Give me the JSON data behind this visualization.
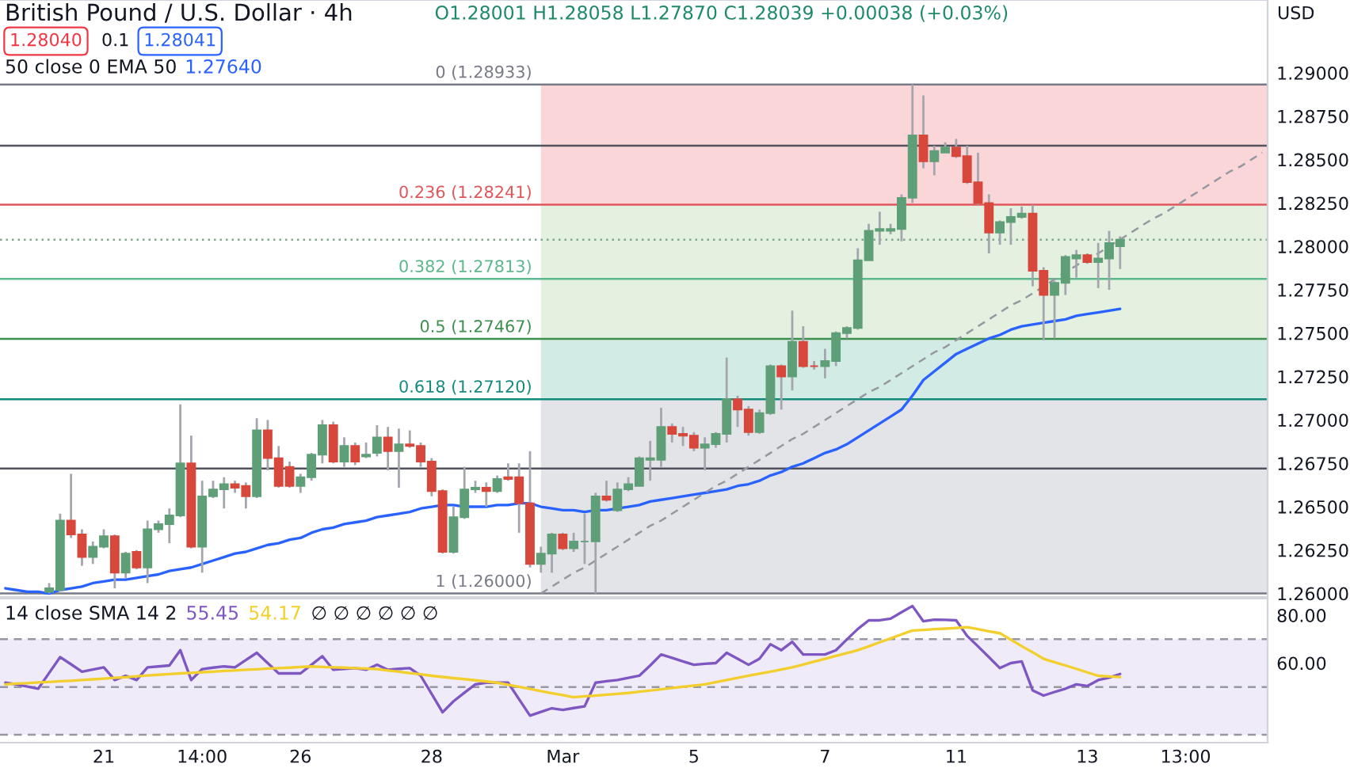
{
  "chart_data": [
    {
      "type": "candlestick",
      "title": "British Pound / U.S. Dollar · 4h",
      "ylabel": "USD",
      "annotations": [
        "O1.28001 H1.28058 L1.27870 C1.28039 +0.00038 (+0.03%)",
        "1.28040",
        "0.1",
        "1.28041",
        "50 close 0 EMA 50",
        "1.27640"
      ],
      "categories": [
        null,
        null,
        null,
        null,
        null,
        null,
        null,
        null,
        null,
        null,
        null,
        null,
        null,
        null,
        null,
        null,
        null,
        null,
        null,
        null,
        null,
        null,
        null,
        null,
        null,
        null,
        null,
        null,
        null,
        null,
        null,
        null,
        null,
        null,
        null,
        null,
        null,
        null,
        null,
        null,
        null,
        null,
        null,
        null,
        null,
        null,
        null,
        null,
        null,
        null,
        null,
        null,
        null,
        null,
        null,
        null,
        null,
        null,
        null,
        null,
        null,
        null,
        null,
        null,
        null,
        null,
        null,
        null,
        null,
        null,
        null,
        null,
        null,
        null,
        null,
        null,
        null,
        null,
        null,
        null,
        null,
        null,
        null,
        null,
        null,
        null,
        null,
        null,
        null,
        null,
        null,
        null,
        null,
        null,
        null,
        null,
        null,
        null,
        null,
        null,
        null,
        null,
        null,
        null,
        null,
        null,
        null,
        null,
        null,
        null,
        null,
        null,
        null,
        null,
        null,
        null
      ],
      "ohlc": [
        null,
        null,
        null,
        null,
        [
          1.2601,
          1.2606,
          1.26,
          1.2603
        ],
        [
          1.2602,
          1.2646,
          1.2601,
          1.2642
        ],
        [
          1.2642,
          1.2669,
          1.2632,
          1.2634
        ],
        [
          1.2634,
          1.2637,
          1.2616,
          1.2621
        ],
        [
          1.2621,
          1.263,
          1.2617,
          1.2627
        ],
        [
          1.2627,
          1.2637,
          1.2626,
          1.2633
        ],
        [
          1.2633,
          1.2634,
          1.2603,
          1.2612
        ],
        [
          1.2612,
          1.2624,
          1.2609,
          1.2623
        ],
        [
          1.2624,
          1.2625,
          1.2614,
          1.2615
        ],
        [
          1.2615,
          1.2642,
          1.2606,
          1.2637
        ],
        [
          1.2637,
          1.2642,
          1.2635,
          1.264
        ],
        [
          1.264,
          1.2649,
          1.2629,
          1.2645
        ],
        [
          1.2645,
          1.2709,
          1.2644,
          1.2675
        ],
        [
          1.2675,
          1.2691,
          1.2626,
          1.2627
        ],
        [
          1.2627,
          1.2665,
          1.2612,
          1.2656
        ],
        [
          1.2656,
          1.2665,
          1.2655,
          1.266
        ],
        [
          1.266,
          1.2667,
          1.2649,
          1.2663
        ],
        [
          1.2663,
          1.2665,
          1.2658,
          1.2661
        ],
        [
          1.2662,
          1.2664,
          1.2649,
          1.2656
        ],
        [
          1.2656,
          1.2701,
          1.2655,
          1.2694
        ],
        [
          1.2694,
          1.27,
          1.2671,
          1.2678
        ],
        [
          1.2678,
          1.2685,
          1.2661,
          1.2662
        ],
        [
          1.2673,
          1.2676,
          1.2661,
          1.2662
        ],
        [
          1.2662,
          1.2669,
          1.2658,
          1.2667
        ],
        [
          1.2667,
          1.2681,
          1.2665,
          1.268
        ],
        [
          1.268,
          1.27,
          1.2675,
          1.2697
        ],
        [
          1.2697,
          1.2699,
          1.2675,
          1.2676
        ],
        [
          1.2676,
          1.269,
          1.2673,
          1.2685
        ],
        [
          1.2685,
          1.2687,
          1.2674,
          1.2676
        ],
        [
          1.2679,
          1.2687,
          1.2678,
          1.268
        ],
        [
          1.2681,
          1.2697,
          1.2679,
          1.269
        ],
        [
          1.269,
          1.2696,
          1.2671,
          1.2682
        ],
        [
          1.2682,
          1.2695,
          1.2661,
          1.2686
        ],
        [
          1.2686,
          1.2694,
          1.2684,
          1.2685
        ],
        [
          1.2685,
          1.2687,
          1.2673,
          1.2676
        ],
        [
          1.2676,
          1.2678,
          1.2656,
          1.2659
        ],
        [
          1.2659,
          1.266,
          1.2623,
          1.2624
        ],
        [
          1.2624,
          1.265,
          1.2623,
          1.2644
        ],
        [
          1.2644,
          1.2673,
          1.2643,
          1.266
        ],
        [
          1.266,
          1.2665,
          1.2658,
          1.2661
        ],
        [
          1.2661,
          1.2664,
          1.265,
          1.2659
        ],
        [
          1.2659,
          1.2668,
          1.2658,
          1.2666
        ],
        [
          1.2667,
          1.2675,
          1.2665,
          1.2666
        ],
        [
          1.2667,
          1.2675,
          1.2635,
          1.2652
        ],
        [
          1.2652,
          1.2682,
          1.2615,
          1.2617
        ],
        [
          1.2617,
          1.2627,
          1.2612,
          1.2623
        ],
        [
          1.2623,
          1.2635,
          1.2612,
          1.2634
        ],
        [
          1.2634,
          1.2635,
          1.2625,
          1.2626
        ],
        [
          1.2626,
          1.2635,
          1.2624,
          1.263
        ],
        [
          1.263,
          1.2646,
          1.2617,
          1.263
        ],
        [
          1.263,
          1.2658,
          1.26,
          1.2656
        ],
        [
          1.2656,
          1.2665,
          1.2653,
          1.2654
        ],
        [
          1.2648,
          1.2664,
          1.2647,
          1.266
        ],
        [
          1.266,
          1.2667,
          1.2659,
          1.2663
        ],
        [
          1.2662,
          1.2679,
          1.2662,
          1.2678
        ],
        [
          1.2677,
          1.2688,
          1.2665,
          1.2678
        ],
        [
          1.2677,
          1.2707,
          1.2673,
          1.2696
        ],
        [
          1.2696,
          1.2698,
          1.2687,
          1.2692
        ],
        [
          1.2692,
          1.2696,
          1.2685,
          1.2691
        ],
        [
          1.2691,
          1.2693,
          1.2682,
          1.2684
        ],
        [
          1.2684,
          1.269,
          1.2671,
          1.2686
        ],
        [
          1.2686,
          1.2693,
          1.2684,
          1.2692
        ],
        [
          1.2692,
          1.2736,
          1.2687,
          1.2712
        ],
        [
          1.2712,
          1.2714,
          1.2696,
          1.2706
        ],
        [
          1.2706,
          1.2708,
          1.2691,
          1.2693
        ],
        [
          1.2693,
          1.2706,
          1.2692,
          1.2704
        ],
        [
          1.2704,
          1.2732,
          1.2703,
          1.2731
        ],
        [
          1.2731,
          1.2732,
          1.2706,
          1.2725
        ],
        [
          1.2725,
          1.2763,
          1.2717,
          1.2745
        ],
        [
          1.2745,
          1.2754,
          1.273,
          1.2731
        ],
        [
          1.2731,
          1.2734,
          1.2729,
          1.2731
        ],
        [
          1.2731,
          1.2741,
          1.2724,
          1.2734
        ],
        [
          1.2734,
          1.2751,
          1.2731,
          1.275
        ],
        [
          1.275,
          1.2754,
          1.2747,
          1.2753
        ],
        [
          1.2753,
          1.2799,
          1.2752,
          1.2792
        ],
        [
          1.2792,
          1.2813,
          1.2792,
          1.2809
        ],
        [
          1.2809,
          1.282,
          1.2801,
          1.281
        ],
        [
          1.2809,
          1.2813,
          1.2807,
          1.281
        ],
        [
          1.281,
          1.283,
          1.2803,
          1.2828
        ],
        [
          1.2828,
          1.28933,
          1.2825,
          1.2864
        ],
        [
          1.2864,
          1.2887,
          1.2845,
          1.2849
        ],
        [
          1.2849,
          1.2858,
          1.2841,
          1.2855
        ],
        [
          1.2854,
          1.286,
          1.2854,
          1.2857
        ],
        [
          1.2857,
          1.2862,
          1.2851,
          1.2852
        ],
        [
          1.2852,
          1.2858,
          1.2836,
          1.2837
        ],
        [
          1.2837,
          1.2854,
          1.2824,
          1.2825
        ],
        [
          1.2825,
          1.283,
          1.2796,
          1.2808
        ],
        [
          1.2808,
          1.2815,
          1.2801,
          1.2814
        ],
        [
          1.2814,
          1.2822,
          1.2801,
          1.2817
        ],
        [
          1.2817,
          1.2823,
          1.2816,
          1.2819
        ],
        [
          1.2819,
          1.2824,
          1.2777,
          1.2786
        ],
        [
          1.2786,
          1.2788,
          1.2746,
          1.2772
        ],
        [
          1.2772,
          1.278,
          1.2747,
          1.2779
        ],
        [
          1.2779,
          1.2795,
          1.2772,
          1.2794
        ],
        [
          1.2793,
          1.2798,
          1.2782,
          1.2795
        ],
        [
          1.2795,
          1.2796,
          1.279,
          1.2791
        ],
        [
          1.2791,
          1.2802,
          1.2776,
          1.2793
        ],
        [
          1.2793,
          1.2809,
          1.2775,
          1.2802
        ],
        [
          1.28001,
          1.28058,
          1.2787,
          1.28039
        ],
        null,
        null,
        null,
        null,
        null,
        null,
        null,
        null,
        null,
        null,
        null,
        null,
        null
      ],
      "colors": [
        null,
        null,
        null,
        null,
        "#5f9f78",
        "#5f9f78",
        "#d8473b",
        "#d8473b",
        "#5f9f78",
        "#5f9f78",
        "#d8473b",
        "#5f9f78",
        "#d8473b",
        "#5f9f78",
        "#5f9f78",
        "#5f9f78",
        "#5f9f78",
        "#d8473b",
        "#5f9f78",
        "#5f9f78",
        "#5f9f78",
        "#d8473b",
        "#d8473b",
        "#5f9f78",
        "#d8473b",
        "#d8473b",
        "#d8473b",
        "#5f9f78",
        "#5f9f78",
        "#5f9f78",
        "#d8473b",
        "#5f9f78",
        "#d8473b",
        "#5f9f78",
        "#5f9f78",
        "#d8473b",
        "#5f9f78",
        "#d8473b",
        "#d8473b",
        "#d8473b",
        "#d8473b",
        "#5f9f78",
        "#5f9f78",
        "#5f9f78",
        "#d8473b",
        "#5f9f78",
        "#d8473b",
        "#d8473b",
        "#d8473b",
        "#5f9f78",
        "#5f9f78",
        "#d8473b",
        "#5f9f78",
        "#5f9f78",
        "#5f9f78",
        "#d8473b",
        "#5f9f78",
        "#5f9f78",
        "#5f9f78",
        "#5f9f78",
        "#5f9f78",
        "#d8473b",
        "#d8473b",
        "#d8473b",
        "#5f9f78",
        "#5f9f78",
        "#5f9f78",
        "#d8473b",
        "#d8473b",
        "#5f9f78",
        "#5f9f78",
        "#d8473b",
        "#5f9f78",
        "#d8473b",
        "#d8473b",
        "#5f9f78",
        "#5f9f78",
        "#5f9f78",
        "#5f9f78",
        "#5f9f78",
        "#5f9f78",
        "#5f9f78",
        "#5f9f78",
        "#5f9f78",
        "#d8473b",
        "#5f9f78",
        "#5f9f78",
        "#d8473b",
        "#d8473b",
        "#d8473b",
        "#d8473b",
        "#5f9f78",
        "#5f9f78",
        "#5f9f78",
        "#d8473b",
        "#d8473b",
        "#5f9f78",
        "#5f9f78",
        "#5f9f78",
        "#d8473b",
        "#5f9f78",
        "#5f9f78",
        "#5f9f78",
        null,
        null,
        null,
        null,
        null,
        null,
        null,
        null,
        null,
        null,
        null,
        null,
        null
      ],
      "series": [
        {
          "type": "line",
          "color": "#2962ff",
          "values": [
            1.2603,
            1.2602,
            1.2601,
            1.2601,
            1.26,
            1.2602,
            1.2603,
            1.2604,
            1.2606,
            1.2607,
            1.2608,
            1.2608,
            1.2609,
            1.261,
            1.2611,
            1.2613,
            1.2614,
            1.2615,
            1.2617,
            1.2619,
            1.2621,
            1.2623,
            1.2624,
            1.2626,
            1.2628,
            1.2629,
            1.2631,
            1.2632,
            1.2635,
            1.2637,
            1.2638,
            1.264,
            1.2641,
            1.2642,
            1.2644,
            1.2645,
            1.2646,
            1.2647,
            1.2649,
            1.265,
            1.2651,
            1.2651,
            1.265,
            1.265,
            1.265,
            1.2651,
            1.2651,
            1.2652,
            1.2652,
            1.265,
            1.2649,
            1.2648,
            1.2648,
            1.2647,
            1.2648,
            1.2648,
            1.2649,
            1.265,
            1.2651,
            1.2653,
            1.2654,
            1.2655,
            1.2656,
            1.2657,
            1.2658,
            1.2659,
            1.266,
            1.2662,
            1.2663,
            1.2665,
            1.2668,
            1.267,
            1.2673,
            1.2675,
            1.2678,
            1.2681,
            1.2683,
            1.2686,
            1.269,
            1.2694,
            1.2698,
            1.2702,
            1.2706,
            1.2714,
            1.2723,
            1.2728,
            1.2733,
            1.2738,
            1.2741,
            1.2744,
            1.2747,
            1.2749,
            1.2752,
            1.2754,
            1.2755,
            1.2756,
            1.2757,
            1.2758,
            1.276,
            1.2761,
            1.2762,
            1.2763,
            1.2764,
            null,
            null,
            null,
            null,
            null,
            null,
            null,
            null,
            null,
            null,
            null,
            null,
            null
          ]
        },
        {
          "type": "line",
          "color": "#9598a1",
          "line_style": "dashed",
          "values": [
            null,
            null,
            null,
            null,
            null,
            null,
            null,
            null,
            null,
            null,
            null,
            null,
            null,
            null,
            null,
            null,
            null,
            null,
            null,
            null,
            null,
            null,
            null,
            null,
            null,
            null,
            null,
            null,
            null,
            null,
            null,
            null,
            null,
            null,
            null,
            null,
            null,
            null,
            null,
            null,
            null,
            null,
            null,
            null,
            null,
            null,
            null,
            null,
            null,
            1.26,
            1.2604,
            1.2608,
            1.2612,
            1.2615,
            1.2619,
            1.2623,
            1.2627,
            1.2631,
            1.2635,
            1.2639,
            1.2642,
            1.2646,
            1.265,
            1.2654,
            1.2658,
            1.2662,
            1.2665,
            1.2669,
            1.2673,
            1.2677,
            1.2681,
            1.2685,
            1.2689,
            1.2692,
            1.2696,
            1.27,
            1.2704,
            1.2708,
            1.2712,
            1.2716,
            1.2719,
            1.2723,
            1.2727,
            1.2731,
            1.2735,
            1.2739,
            1.2742,
            1.2746,
            1.275,
            1.2754,
            1.2758,
            1.2762,
            1.2766,
            1.2769,
            1.2773,
            1.2777,
            1.2781,
            1.2785,
            1.2789,
            1.2793,
            1.2796,
            1.28,
            1.2804,
            1.2808,
            1.2812,
            1.2816,
            1.2819,
            1.2823,
            1.2827,
            1.2831,
            1.2835,
            1.2839,
            1.2843,
            1.2846,
            1.285,
            1.2854
          ]
        }
      ],
      "ref_lines": [
        {
          "axis": "y",
          "value": 1.28933,
          "label": "0 (1.28933)",
          "color": "#787b86"
        },
        {
          "axis": "y",
          "value": 1.2858,
          "color": "#50535e"
        },
        {
          "axis": "y",
          "value": 1.28241,
          "label": "0.236 (1.28241)",
          "color": "#e0565b"
        },
        {
          "axis": "y",
          "value": 1.28039,
          "color": "#7fa88e",
          "line_style": "dotted"
        },
        {
          "axis": "y",
          "value": 1.27813,
          "label": "0.382 (1.27813)",
          "color": "#5cb88e"
        },
        {
          "axis": "y",
          "value": 1.27467,
          "label": "0.5 (1.27467)",
          "color": "#3c8f4e"
        },
        {
          "axis": "y",
          "value": 1.2712,
          "label": "0.618 (1.27120)",
          "color": "#138a7c"
        },
        {
          "axis": "y",
          "value": 1.2672,
          "color": "#50535e"
        },
        {
          "axis": "y",
          "value": 1.26,
          "label": "1 (1.26000)",
          "color": "#787b86"
        }
      ],
      "bands": [
        {
          "axis": "y",
          "from": 1.28241,
          "to": 1.28933,
          "color": "#fad6d8"
        },
        {
          "axis": "y",
          "from": 1.27467,
          "to": 1.28241,
          "color": "#e4f1e0"
        },
        {
          "axis": "y",
          "from": 1.2712,
          "to": 1.27467,
          "color": "#d2ebe5"
        },
        {
          "axis": "y",
          "from": 1.26,
          "to": 1.2712,
          "color": "#e3e4e7"
        }
      ],
      "ylim": [
        1.2598,
        1.2942
      ],
      "yticks": [
        {
          "value": 1.26,
          "label": "1.26000"
        },
        {
          "value": 1.2625,
          "label": "1.26250"
        },
        {
          "value": 1.265,
          "label": "1.26500"
        },
        {
          "value": 1.2675,
          "label": "1.26750"
        },
        {
          "value": 1.27,
          "label": "1.27000"
        },
        {
          "value": 1.2725,
          "label": "1.27250"
        },
        {
          "value": 1.275,
          "label": "1.27500"
        },
        {
          "value": 1.2775,
          "label": "1.27750"
        },
        {
          "value": 1.28,
          "label": "1.28000"
        },
        {
          "value": 1.2825,
          "label": "1.28250"
        },
        {
          "value": 1.285,
          "label": "1.28500"
        },
        {
          "value": 1.2875,
          "label": "1.28750"
        },
        {
          "value": 1.29,
          "label": "1.29000"
        }
      ]
    },
    {
      "type": "line",
      "title": "14 close SMA 14 2",
      "annotations": [
        "55.45",
        "54.17",
        "∅ ∅ ∅ ∅ ∅ ∅"
      ],
      "categories": [
        null,
        null,
        null,
        null,
        null,
        null,
        null,
        null,
        null,
        "21",
        null,
        null,
        null,
        null,
        null,
        null,
        null,
        null,
        "14:00",
        null,
        null,
        null,
        null,
        null,
        null,
        null,
        null,
        "26",
        null,
        null,
        null,
        null,
        null,
        null,
        null,
        null,
        null,
        null,
        null,
        "28",
        null,
        null,
        null,
        null,
        null,
        null,
        null,
        null,
        null,
        null,
        null,
        "Mar",
        null,
        null,
        null,
        null,
        null,
        null,
        null,
        null,
        null,
        null,
        null,
        "5",
        null,
        null,
        null,
        null,
        null,
        null,
        null,
        null,
        null,
        null,
        null,
        "7",
        null,
        null,
        null,
        null,
        null,
        null,
        null,
        null,
        null,
        null,
        null,
        "11",
        null,
        null,
        null,
        null,
        null,
        null,
        null,
        null,
        null,
        null,
        null,
        "13",
        null,
        null,
        null,
        null,
        null,
        null,
        null,
        null,
        "13:00",
        null,
        null,
        null,
        null,
        null,
        null,
        null
      ],
      "series": [
        {
          "color": "#7e57c2",
          "values": [
            51.8,
            51.1,
            50.2,
            49.3,
            55.9,
            62.5,
            59.5,
            56.4,
            57.3,
            58.2,
            52.9,
            54.7,
            52.9,
            58.2,
            58.6,
            59.0,
            65.4,
            52.9,
            57.5,
            58.1,
            58.6,
            58.2,
            61.3,
            64.3,
            60.0,
            55.7,
            55.7,
            55.7,
            59.3,
            62.9,
            57.2,
            57.6,
            57.9,
            57.2,
            59.3,
            57.2,
            57.6,
            57.9,
            54.7,
            47.1,
            39.4,
            44.0,
            47.6,
            51.1,
            51.8,
            51.8,
            51.8,
            44.9,
            38.0,
            39.6,
            41.1,
            40.4,
            41.2,
            41.9,
            51.8,
            52.4,
            52.9,
            53.8,
            54.7,
            59.0,
            63.6,
            62.2,
            60.7,
            59.3,
            59.7,
            60.0,
            64.3,
            61.8,
            59.3,
            61.8,
            67.9,
            65.4,
            68.9,
            63.6,
            63.6,
            63.6,
            65.4,
            69.9,
            74.3,
            77.9,
            77.9,
            78.6,
            81.3,
            83.9,
            77.5,
            78.2,
            78.1,
            77.9,
            71.4,
            67.0,
            62.5,
            57.9,
            60.0,
            60.7,
            48.6,
            46.4,
            47.9,
            49.3,
            51.1,
            50.4,
            52.9,
            53.9,
            55.45,
            null,
            null,
            null,
            null,
            null,
            null,
            null,
            null,
            null,
            null,
            null,
            null,
            null
          ]
        },
        {
          "color": "#f2cf2c",
          "values": [
            51.1,
            51.4,
            51.6,
            51.9,
            52.1,
            52.4,
            52.6,
            52.9,
            53.2,
            53.5,
            53.8,
            54.1,
            54.5,
            54.8,
            55.1,
            55.4,
            55.7,
            55.9,
            56.2,
            56.4,
            56.7,
            56.9,
            57.2,
            57.4,
            57.7,
            57.9,
            58.1,
            58.4,
            58.6,
            58.4,
            58.2,
            58.1,
            57.9,
            57.7,
            57.5,
            56.9,
            56.4,
            55.8,
            55.3,
            54.7,
            54.2,
            53.7,
            53.3,
            52.8,
            52.3,
            51.8,
            50.9,
            50.1,
            49.2,
            48.3,
            47.4,
            46.6,
            45.7,
            46.1,
            46.4,
            46.8,
            47.1,
            47.5,
            48.0,
            48.5,
            49.0,
            49.6,
            50.1,
            50.6,
            51.1,
            52.0,
            52.9,
            53.8,
            54.7,
            55.6,
            56.4,
            57.3,
            58.2,
            59.4,
            60.6,
            61.8,
            63.0,
            64.2,
            65.4,
            67.0,
            68.7,
            70.3,
            72.0,
            73.6,
            73.9,
            74.2,
            74.4,
            74.7,
            75.0,
            74.2,
            73.3,
            72.5,
            69.8,
            67.1,
            64.5,
            61.8,
            60.4,
            59.0,
            57.6,
            56.1,
            54.7,
            54.4,
            54.17,
            null,
            null,
            null,
            null,
            null,
            null,
            null,
            null,
            null,
            null,
            null,
            null,
            null
          ]
        }
      ],
      "ref_lines": [
        {
          "axis": "y",
          "value": 70,
          "line_style": "dashed",
          "color": "#9598a1"
        },
        {
          "axis": "y",
          "value": 50,
          "line_style": "dashed",
          "color": "#9598a1"
        },
        {
          "axis": "y",
          "value": 30,
          "line_style": "dashed",
          "color": "#9598a1"
        }
      ],
      "bands": [
        {
          "axis": "y",
          "from": 30,
          "to": 70,
          "color": "#efebf8"
        }
      ],
      "ylim": [
        26.7,
        87
      ],
      "yticks": [
        {
          "value": 80,
          "label": "80.00"
        },
        {
          "value": 60,
          "label": "60.00"
        }
      ]
    }
  ]
}
